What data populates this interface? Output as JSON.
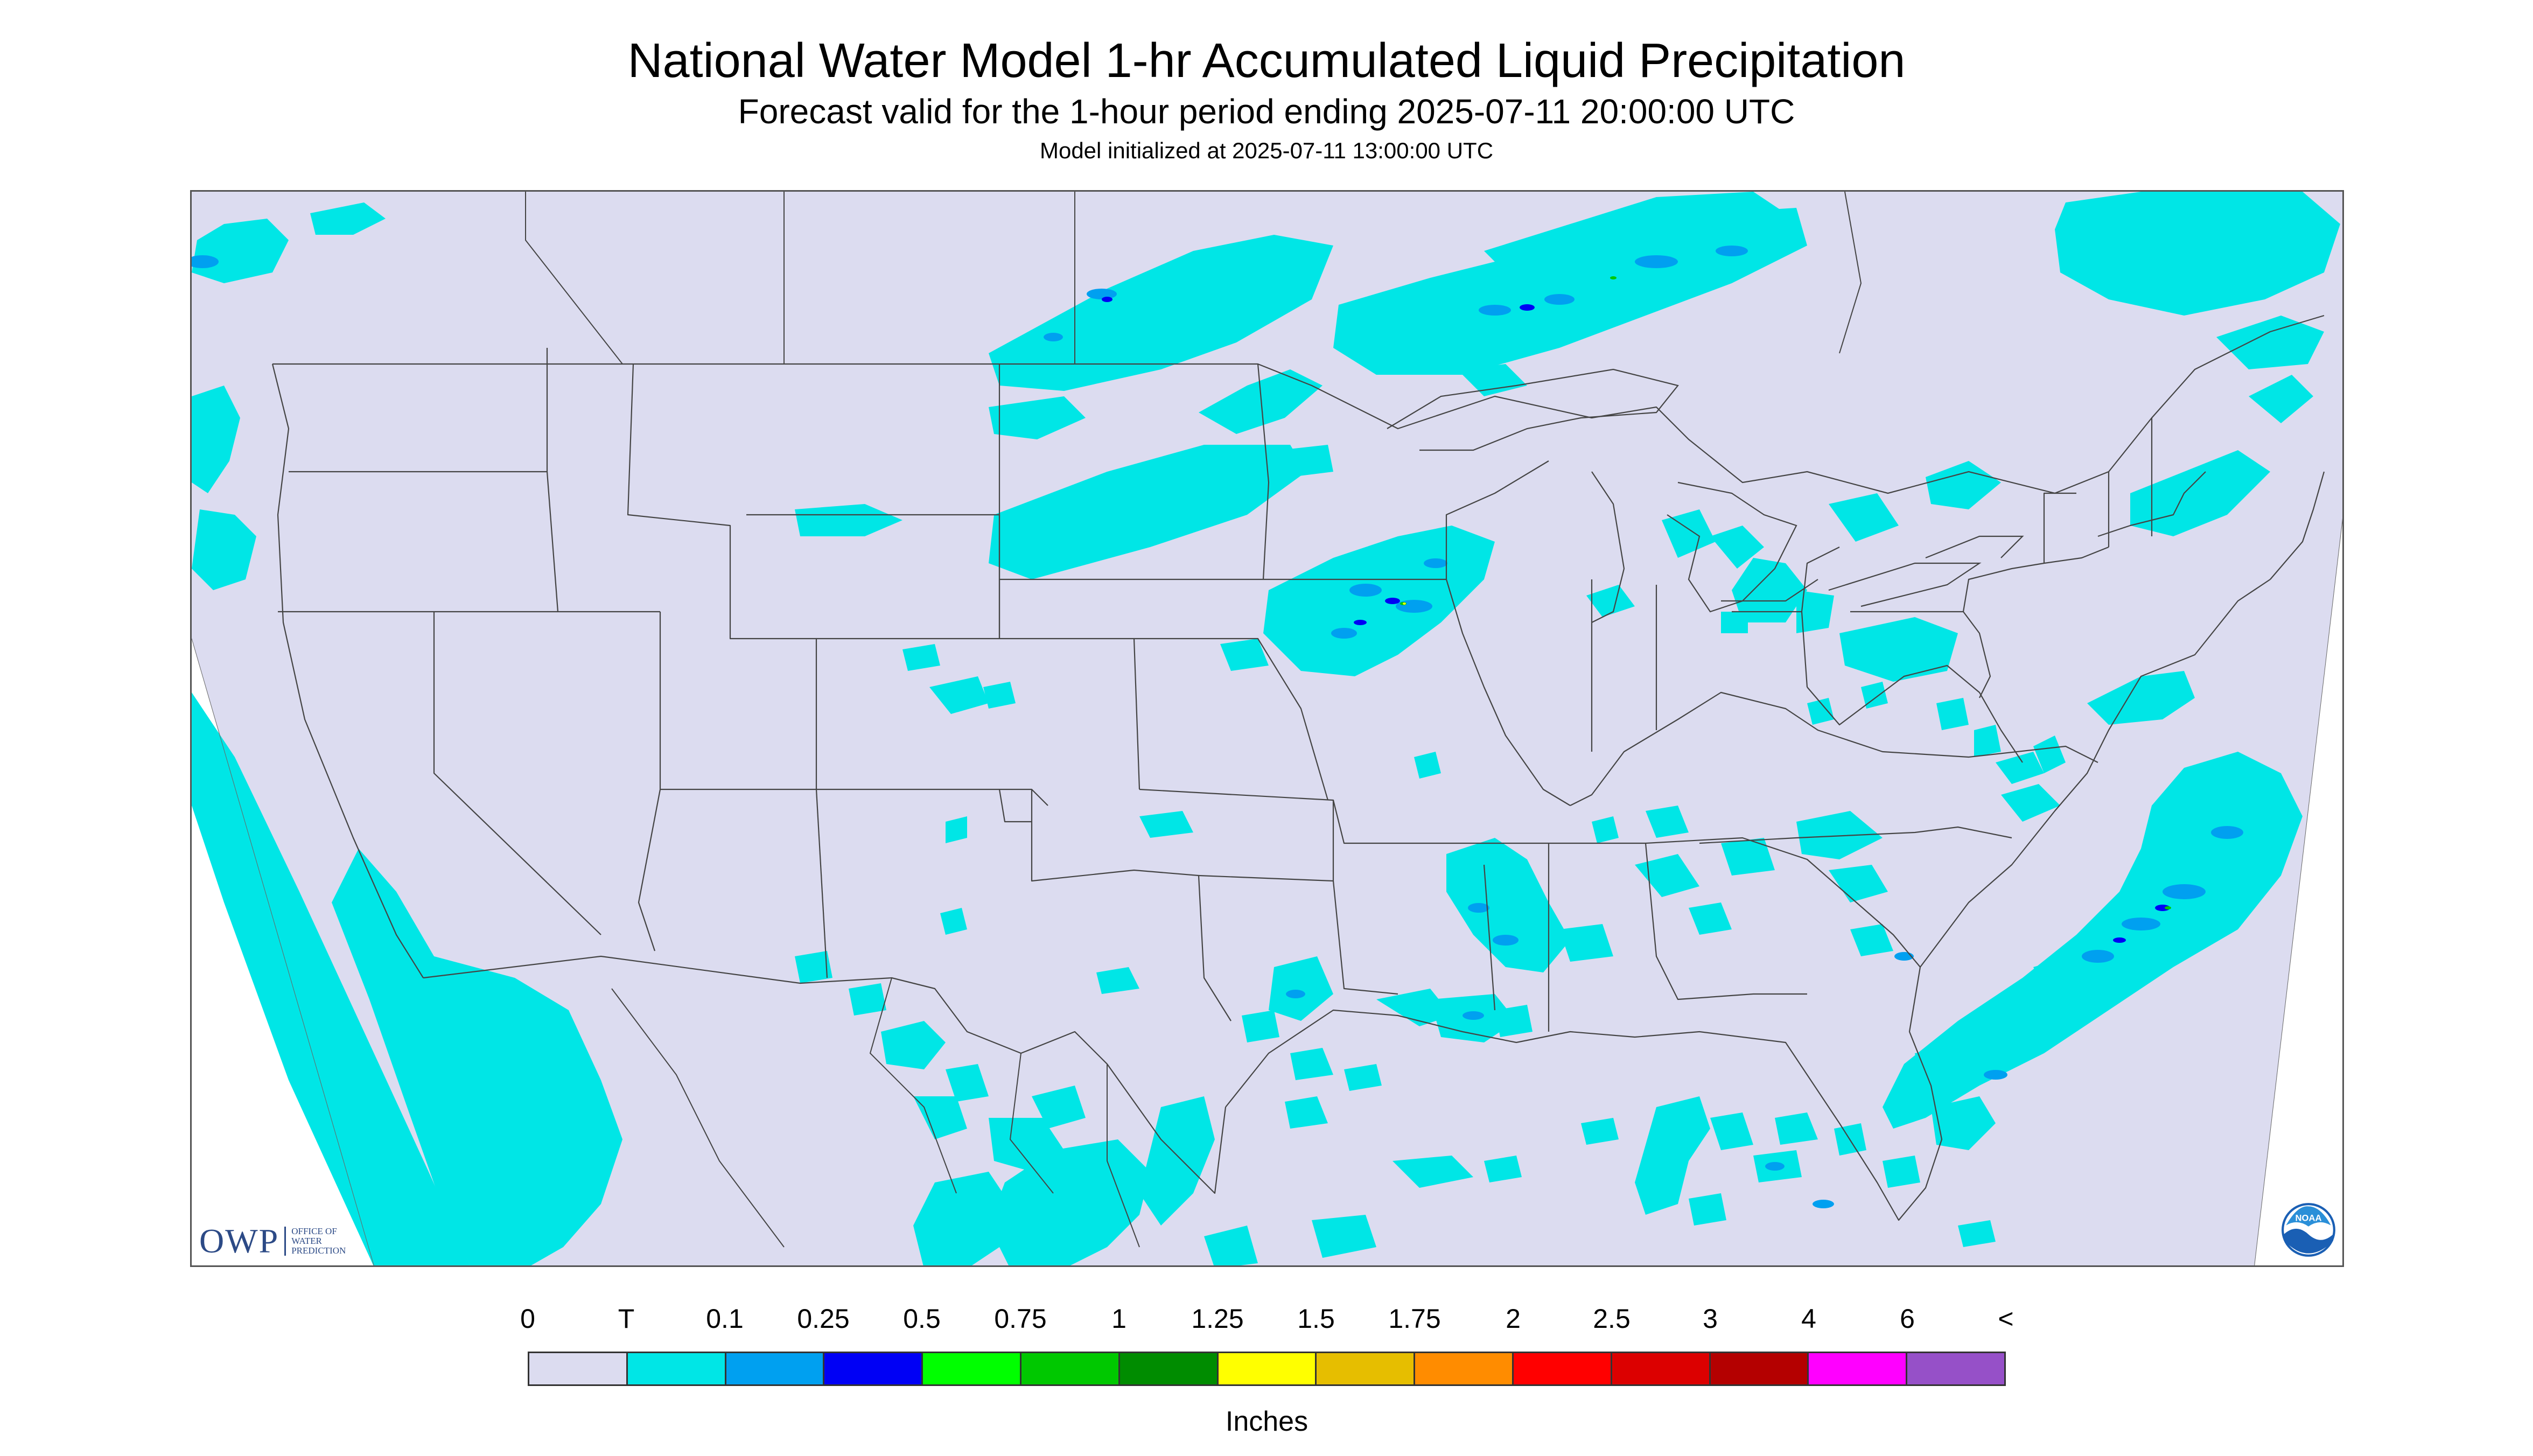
{
  "header": {
    "title": "National Water Model 1-hr Accumulated Liquid Precipitation",
    "subtitle": "Forecast valid for the 1-hour period ending 2025-07-11 20:00:00 UTC",
    "init_line": "Model initialized at 2025-07-11 13:00:00 UTC"
  },
  "map": {
    "region": "Contiguous United States",
    "ocean_color": "#dcdcf0",
    "outside_color": "#ffffff",
    "boundary_color": "#444444"
  },
  "legend": {
    "unit": "Inches",
    "tick_labels": [
      "0",
      "T",
      "0.1",
      "0.25",
      "0.5",
      "0.75",
      "1",
      "1.25",
      "1.5",
      "1.75",
      "2",
      "2.5",
      "3",
      "4",
      "6",
      "<"
    ],
    "colors": [
      "#dcdcf0",
      "#00e6e6",
      "#00a0f0",
      "#0000f5",
      "#00ff00",
      "#00c800",
      "#008c00",
      "#ffff00",
      "#e6be00",
      "#ff8c00",
      "#ff0000",
      "#dc0000",
      "#b40000",
      "#ff00ff",
      "#9650c8"
    ]
  },
  "logos": {
    "owp_mark": "OWP",
    "owp_text": [
      "OFFICE OF",
      "WATER",
      "PREDICTION"
    ],
    "noaa": "NOAA"
  }
}
